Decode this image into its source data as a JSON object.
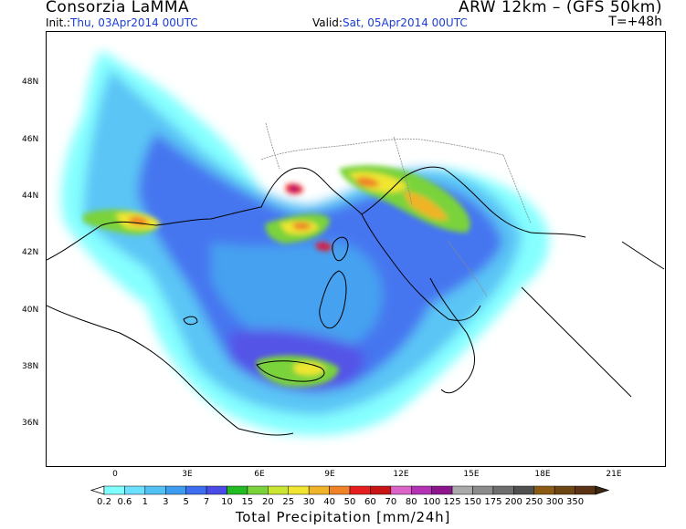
{
  "header": {
    "source": "Consorzia LaMMA",
    "model": "ARW 12km  –  (GFS 50km)",
    "init_label": "Init.:",
    "init_value": "Thu, 03Apr2014  00UTC",
    "valid_label": "Valid:",
    "valid_value": "Sat, 05Apr2014  00UTC",
    "forecast_step": "T=+48h"
  },
  "map": {
    "lat_labels": [
      "48N",
      "46N",
      "44N",
      "42N",
      "40N",
      "38N",
      "36N"
    ],
    "lon_labels": [
      "0",
      "3E",
      "6E",
      "9E",
      "12E",
      "15E",
      "18E",
      "21E"
    ],
    "colors": {
      "land_outline": "#000000",
      "border": "#8a8a8a"
    }
  },
  "legend": {
    "title": "Total Precipitation [mm/24h]",
    "labels": [
      "0.2",
      "0.6",
      "1",
      "3",
      "5",
      "7",
      "10",
      "15",
      "20",
      "25",
      "30",
      "40",
      "50",
      "60",
      "70",
      "80",
      "100",
      "125",
      "150",
      "175",
      "200",
      "250",
      "300",
      "350"
    ],
    "colors": [
      "#7fffff",
      "#6ce0ff",
      "#52c2f5",
      "#3d9cf0",
      "#3d6ef0",
      "#4b4be6",
      "#22bb22",
      "#7ad33b",
      "#c8e632",
      "#f0e632",
      "#f0b428",
      "#f08228",
      "#e61e1e",
      "#c81414",
      "#dc64c8",
      "#b432b4",
      "#8c148c",
      "#aaaaaa",
      "#8c8c8c",
      "#6e6e6e",
      "#505050",
      "#8b5a14",
      "#6e4614",
      "#5a3214"
    ]
  }
}
